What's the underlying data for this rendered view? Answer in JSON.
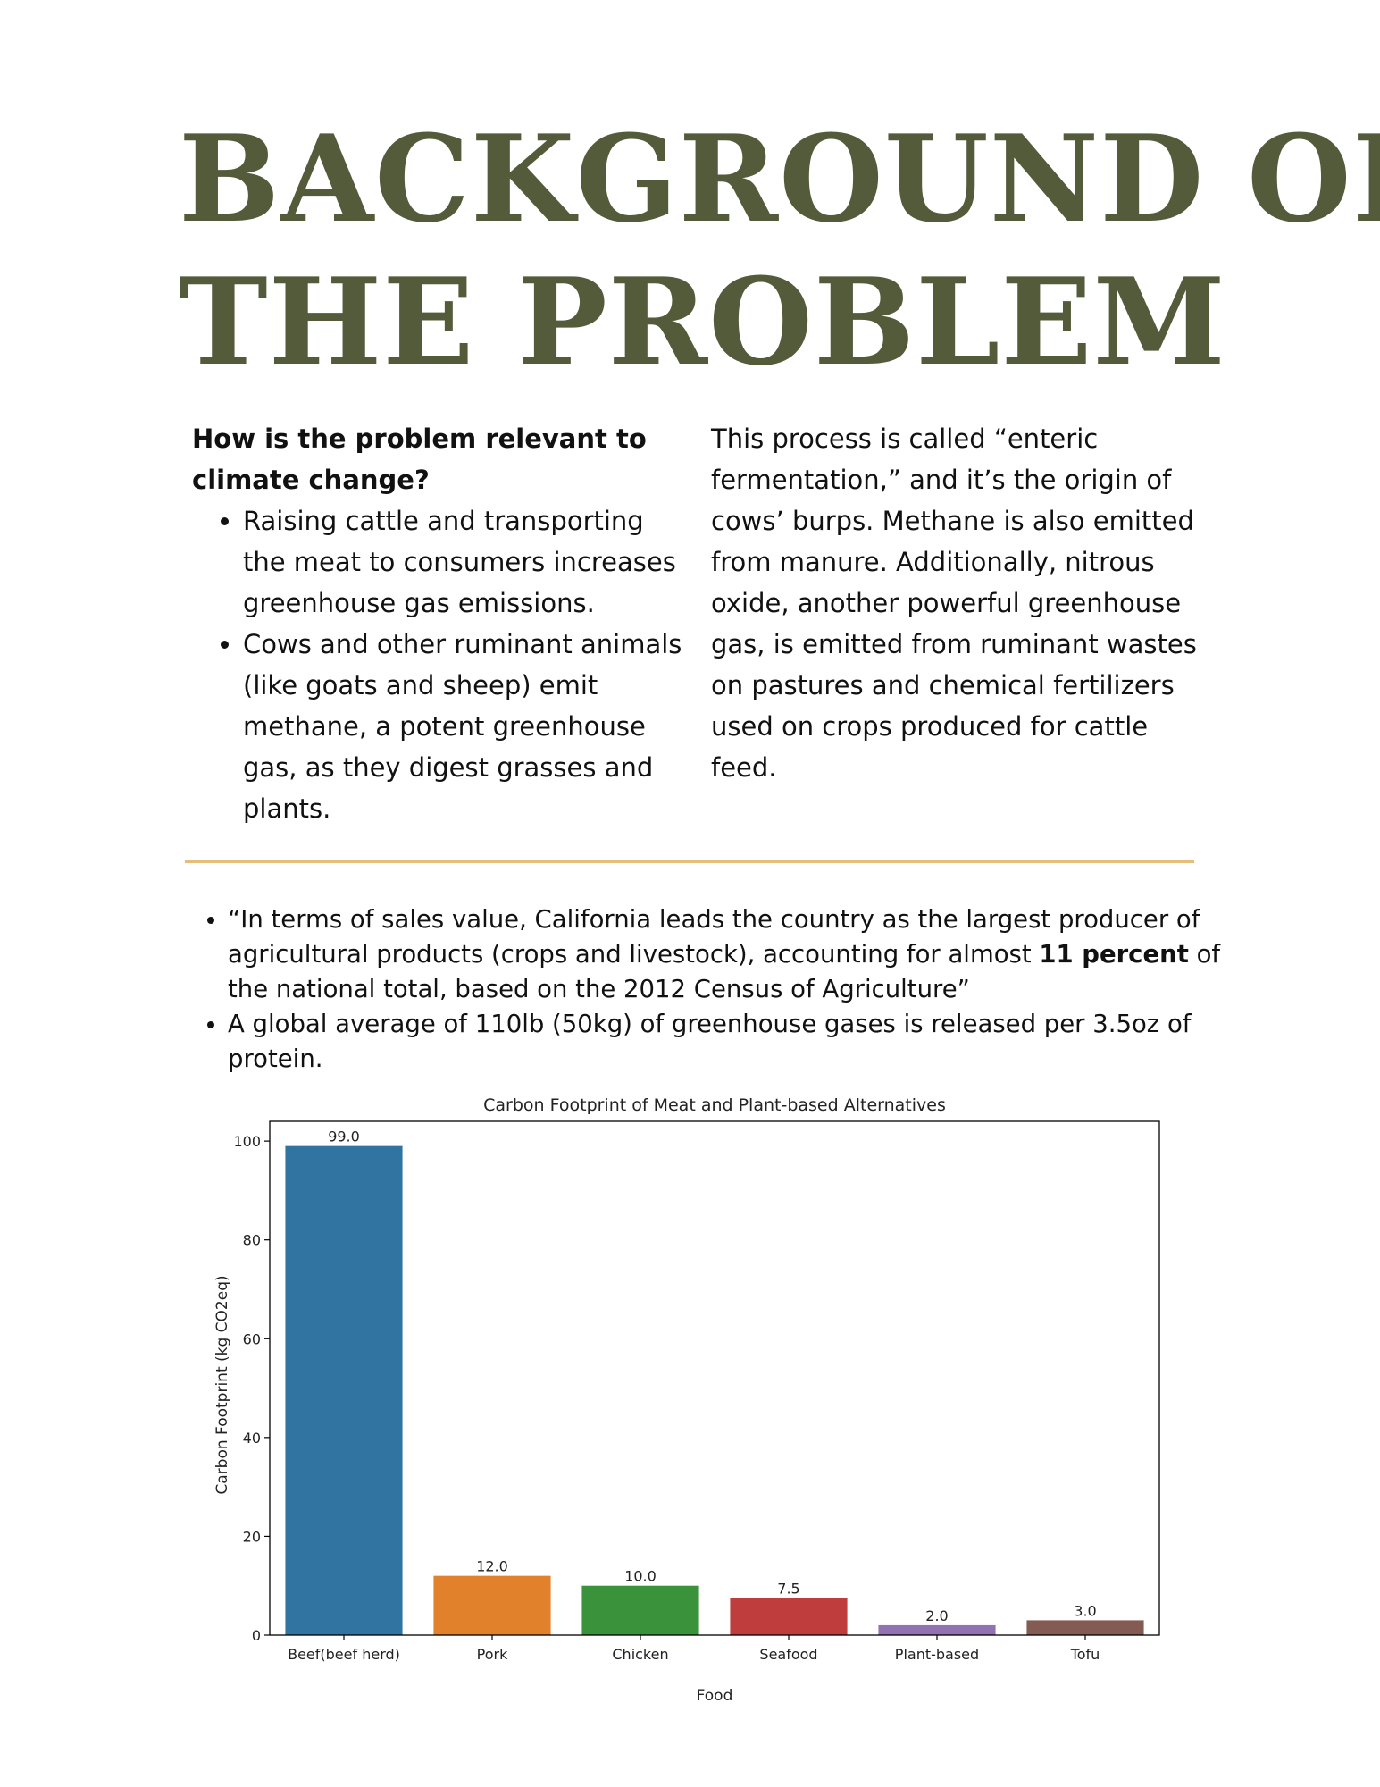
{
  "title": {
    "line1": "BACKGROUND OF",
    "line2": "THE PROBLEM"
  },
  "left_column": {
    "question": "How is the problem relevant to climate change?",
    "bullets": [
      "Raising cattle and transporting the meat to consumers increases greenhouse gas emissions.",
      "Cows and other ruminant animals (like goats and sheep) emit methane, a potent greenhouse gas, as they digest grasses and plants."
    ]
  },
  "right_column": {
    "paragraph": "This process is called “enteric fermentation,” and it’s the origin of cows’ burps. Methane is also emitted from manure. Additionally, nitrous oxide, another powerful greenhouse gas, is emitted from ruminant wastes on pastures and chemical fertilizers used on crops produced for cattle feed."
  },
  "facts": {
    "fact1_before": "“In terms of sales value, California leads the country as the largest producer of agricultural products (crops and livestock), accounting for almost ",
    "fact1_bold": "11 percent",
    "fact1_after": " of the national total, based on the 2012 Census of Agriculture”",
    "fact2": "A global average of 110lb (50kg) of greenhouse gases is released per 3.5oz of protein."
  },
  "chart_data": {
    "type": "bar",
    "title": "Carbon Footprint of Meat and Plant-based Alternatives",
    "xlabel": "Food",
    "ylabel": "Carbon Footprint (kg CO2eq)",
    "categories": [
      "Beef(beef herd)",
      "Pork",
      "Chicken",
      "Seafood",
      "Plant-based",
      "Tofu"
    ],
    "values": [
      99.0,
      12.0,
      10.0,
      7.5,
      2.0,
      3.0
    ],
    "data_labels": [
      "99.0",
      "12.0",
      "10.0",
      "7.5",
      "2.0",
      "3.0"
    ],
    "colors": [
      "#3274a1",
      "#e1812c",
      "#3a923a",
      "#c03d3e",
      "#9372b2",
      "#845b53"
    ],
    "ylim": [
      0,
      104
    ],
    "yticks": [
      0,
      20,
      40,
      60,
      80,
      100
    ],
    "grid": false,
    "legend": "none"
  }
}
